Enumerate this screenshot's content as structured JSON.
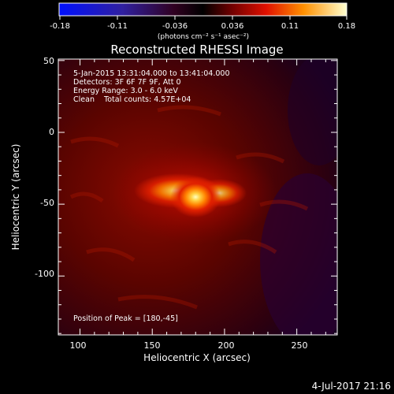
{
  "colorbar": {
    "ticks": [
      "-0.18",
      "-0.11",
      "-0.036",
      "0.036",
      "0.11",
      "0.18"
    ],
    "unit_label": "(photons cm⁻² s⁻¹ asec⁻²)"
  },
  "plot": {
    "title": "Reconstructed RHESSI Image",
    "xlabel": "Heliocentric X (arcsec)",
    "ylabel": "Heliocentric Y (arcsec)",
    "x_ticks": [
      "100",
      "150",
      "200",
      "250"
    ],
    "y_ticks": [
      "50",
      "0",
      "-50",
      "-100"
    ],
    "info_lines": [
      "5-Jan-2015 13:31:04.000 to 13:41:04.000",
      "Detectors: 3F 6F 7F 9F, Att 0",
      "Energy Range: 3.0 - 6.0 keV",
      "Clean    Total counts: 4.57E+04"
    ],
    "peak_text": "Position of Peak = [180,-45]"
  },
  "footer": {
    "date": "4-Jul-2017 21:16"
  },
  "chart_data": {
    "type": "heatmap",
    "title": "Reconstructed RHESSI Image",
    "xlabel": "Heliocentric X (arcsec)",
    "ylabel": "Heliocentric Y (arcsec)",
    "xlim": [
      85,
      278
    ],
    "ylim": [
      -141,
      51
    ],
    "colorbar_range": [
      -0.18,
      0.18
    ],
    "peak": {
      "x": 180,
      "y": -45
    },
    "colormap": [
      "#0000ff",
      "#400070",
      "#000000",
      "#a00000",
      "#ff3000",
      "#ffb000",
      "#ffffa0"
    ]
  }
}
